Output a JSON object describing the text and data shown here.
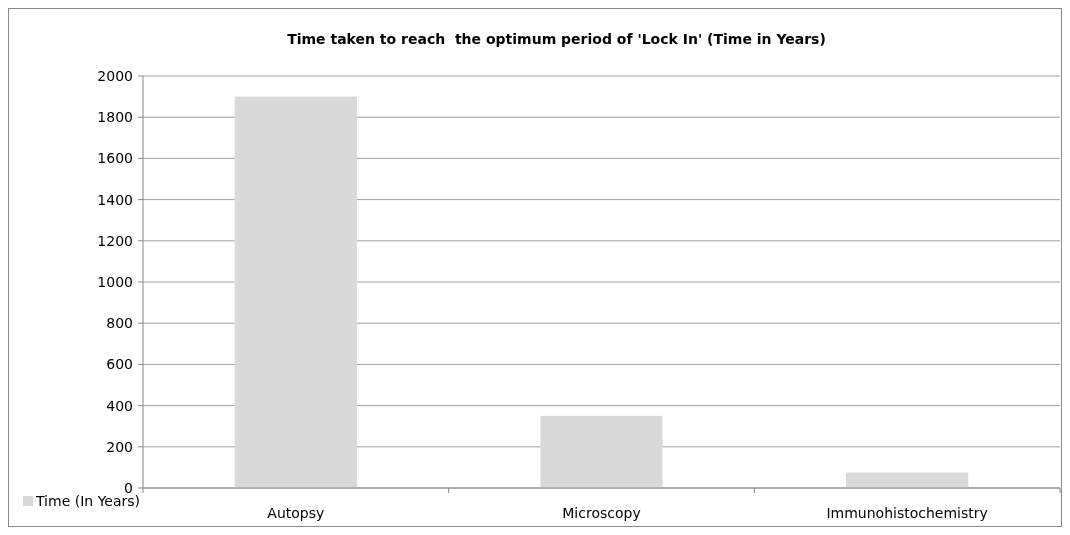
{
  "chart_data": {
    "type": "bar",
    "title": "Time taken to reach  the optimum period of 'Lock In' (Time in Years)",
    "categories": [
      "Autopsy",
      "Microscopy",
      "Immunohistochemistry"
    ],
    "series": [
      {
        "name": "Time (In Years)",
        "color": "#d9d9d9",
        "values": [
          1900,
          350,
          75
        ]
      }
    ],
    "ylim": [
      0,
      2000
    ],
    "yticks": [
      0,
      200,
      400,
      600,
      800,
      1000,
      1200,
      1400,
      1600,
      1800,
      2000
    ],
    "grid": "y",
    "legend": "bottom left"
  }
}
